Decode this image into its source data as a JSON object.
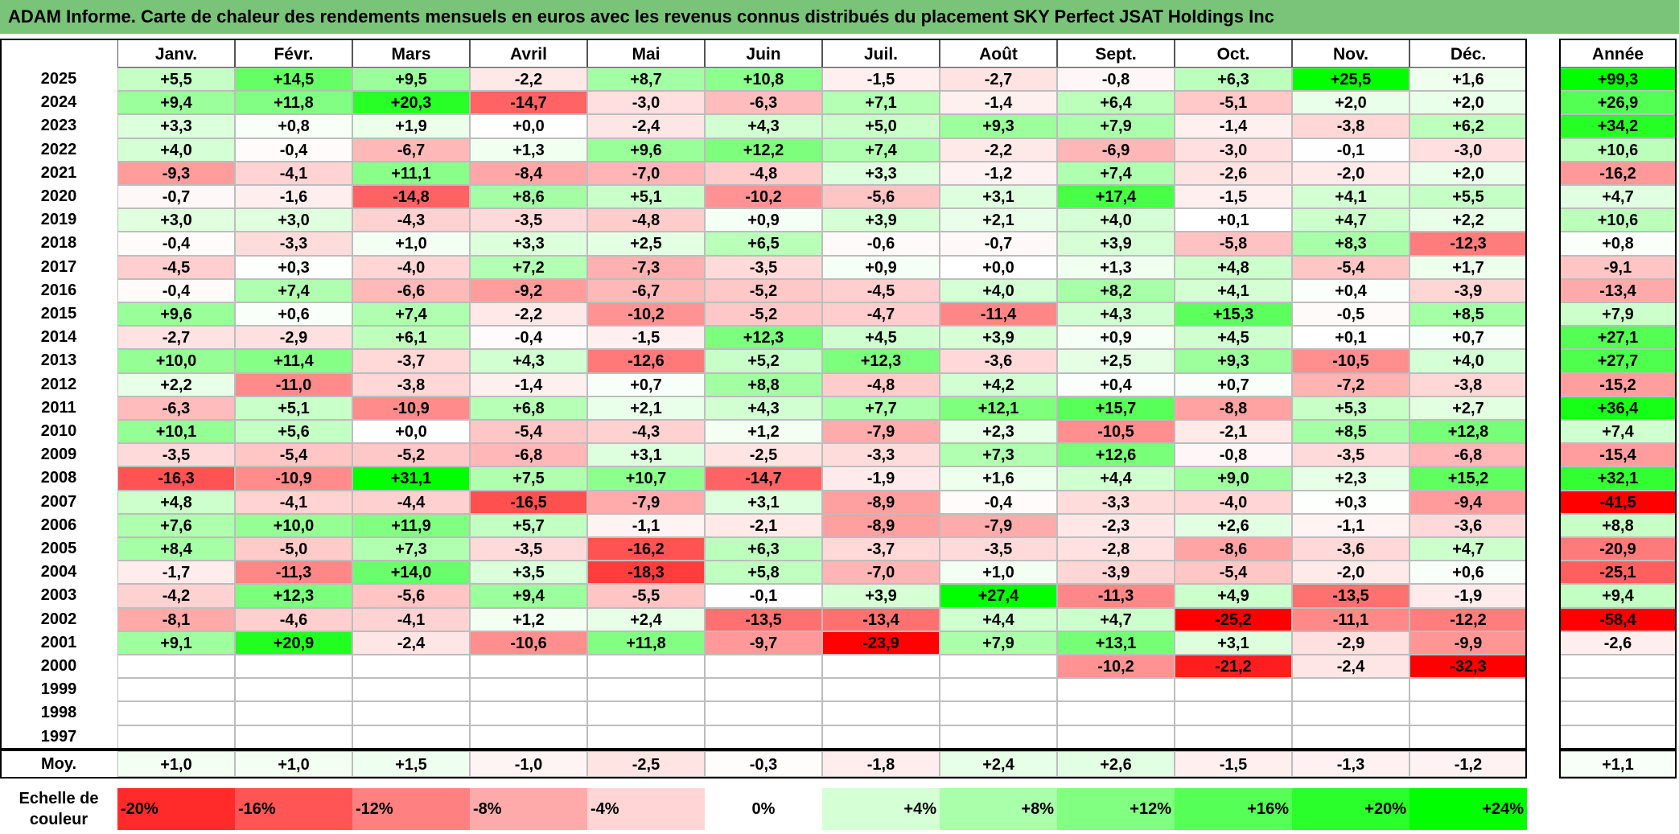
{
  "title": "ADAM Informe. Carte de chaleur des rendements mensuels en euros avec les revenus connus distribués du placement SKY Perfect JSAT Holdings Inc",
  "colors": {
    "title_bar": "#7ac47a",
    "max_red": "#ff0000",
    "max_green": "#00ff00",
    "neutral": "#ffffff"
  },
  "chart_data": {
    "type": "heatmap",
    "title": "ADAM Informe. Carte de chaleur des rendements mensuels en euros avec les revenus connus distribués du placement SKY Perfect JSAT Holdings Inc",
    "months": [
      "Janv.",
      "Févr.",
      "Mars",
      "Avril",
      "Mai",
      "Juin",
      "Juil.",
      "Août",
      "Sept.",
      "Oct.",
      "Nov.",
      "Déc."
    ],
    "annual_label": "Année",
    "rows": [
      {
        "year": "2025",
        "values": [
          "+5,5",
          "+14,5",
          "+9,5",
          "-2,2",
          "+8,7",
          "+10,8",
          "-1,5",
          "-2,7",
          "-0,8",
          "+6,3",
          "+25,5",
          "+1,6"
        ],
        "annual": "+99,3"
      },
      {
        "year": "2024",
        "values": [
          "+9,4",
          "+11,8",
          "+20,3",
          "-14,7",
          "-3,0",
          "-6,3",
          "+7,1",
          "-1,4",
          "+6,4",
          "-5,1",
          "+2,0",
          "+2,0"
        ],
        "annual": "+26,9"
      },
      {
        "year": "2023",
        "values": [
          "+3,3",
          "+0,8",
          "+1,9",
          "+0,0",
          "-2,4",
          "+4,3",
          "+5,0",
          "+9,3",
          "+7,9",
          "-1,4",
          "-3,8",
          "+6,2"
        ],
        "annual": "+34,2"
      },
      {
        "year": "2022",
        "values": [
          "+4,0",
          "-0,4",
          "-6,7",
          "+1,3",
          "+9,6",
          "+12,2",
          "+7,4",
          "-2,2",
          "-6,9",
          "-3,0",
          "-0,1",
          "-3,0"
        ],
        "annual": "+10,6"
      },
      {
        "year": "2021",
        "values": [
          "-9,3",
          "-4,1",
          "+11,1",
          "-8,4",
          "-7,0",
          "-4,8",
          "+3,3",
          "-1,2",
          "+7,4",
          "-2,6",
          "-2,0",
          "+2,0"
        ],
        "annual": "-16,2"
      },
      {
        "year": "2020",
        "values": [
          "-0,7",
          "-1,6",
          "-14,8",
          "+8,6",
          "+5,1",
          "-10,2",
          "-5,6",
          "+3,1",
          "+17,4",
          "-1,5",
          "+4,1",
          "+5,5"
        ],
        "annual": "+4,7"
      },
      {
        "year": "2019",
        "values": [
          "+3,0",
          "+3,0",
          "-4,3",
          "-3,5",
          "-4,8",
          "+0,9",
          "+3,9",
          "+2,1",
          "+4,0",
          "+0,1",
          "+4,7",
          "+2,2"
        ],
        "annual": "+10,6"
      },
      {
        "year": "2018",
        "values": [
          "-0,4",
          "-3,3",
          "+1,0",
          "+3,3",
          "+2,5",
          "+6,5",
          "-0,6",
          "-0,7",
          "+3,9",
          "-5,8",
          "+8,3",
          "-12,3"
        ],
        "annual": "+0,8"
      },
      {
        "year": "2017",
        "values": [
          "-4,5",
          "+0,3",
          "-4,0",
          "+7,2",
          "-7,3",
          "-3,5",
          "+0,9",
          "+0,0",
          "+1,3",
          "+4,8",
          "-5,4",
          "+1,7"
        ],
        "annual": "-9,1"
      },
      {
        "year": "2016",
        "values": [
          "-0,4",
          "+7,4",
          "-6,6",
          "-9,2",
          "-6,7",
          "-5,2",
          "-4,5",
          "+4,0",
          "+8,2",
          "+4,1",
          "+0,4",
          "-3,9"
        ],
        "annual": "-13,4"
      },
      {
        "year": "2015",
        "values": [
          "+9,6",
          "+0,6",
          "+7,4",
          "-2,2",
          "-10,2",
          "-5,2",
          "-4,7",
          "-11,4",
          "+4,3",
          "+15,3",
          "-0,5",
          "+8,5"
        ],
        "annual": "+7,9"
      },
      {
        "year": "2014",
        "values": [
          "-2,7",
          "-2,9",
          "+6,1",
          "-0,4",
          "-1,5",
          "+12,3",
          "+4,5",
          "+3,9",
          "+0,9",
          "+4,5",
          "+0,1",
          "+0,7"
        ],
        "annual": "+27,1"
      },
      {
        "year": "2013",
        "values": [
          "+10,0",
          "+11,4",
          "-3,7",
          "+4,3",
          "-12,6",
          "+5,2",
          "+12,3",
          "-3,6",
          "+2,5",
          "+9,3",
          "-10,5",
          "+4,0"
        ],
        "annual": "+27,7"
      },
      {
        "year": "2012",
        "values": [
          "+2,2",
          "-11,0",
          "-3,8",
          "-1,4",
          "+0,7",
          "+8,8",
          "-4,8",
          "+4,2",
          "+0,4",
          "+0,7",
          "-7,2",
          "-3,8"
        ],
        "annual": "-15,2"
      },
      {
        "year": "2011",
        "values": [
          "-6,3",
          "+5,1",
          "-10,9",
          "+6,8",
          "+2,1",
          "+4,3",
          "+7,7",
          "+12,1",
          "+15,7",
          "-8,8",
          "+5,3",
          "+2,7"
        ],
        "annual": "+36,4"
      },
      {
        "year": "2010",
        "values": [
          "+10,1",
          "+5,6",
          "+0,0",
          "-5,4",
          "-4,3",
          "+1,2",
          "-7,9",
          "+2,3",
          "-10,5",
          "-2,1",
          "+8,5",
          "+12,8"
        ],
        "annual": "+7,4"
      },
      {
        "year": "2009",
        "values": [
          "-3,5",
          "-5,4",
          "-5,2",
          "-6,8",
          "+3,1",
          "-2,5",
          "-3,3",
          "+7,3",
          "+12,6",
          "-0,8",
          "-3,5",
          "-6,8"
        ],
        "annual": "-15,4"
      },
      {
        "year": "2008",
        "values": [
          "-16,3",
          "-10,9",
          "+31,1",
          "+7,5",
          "+10,7",
          "-14,7",
          "-1,9",
          "+1,6",
          "+4,4",
          "+9,0",
          "+2,3",
          "+15,2"
        ],
        "annual": "+32,1"
      },
      {
        "year": "2007",
        "values": [
          "+4,8",
          "-4,1",
          "-4,4",
          "-16,5",
          "-7,9",
          "+3,1",
          "-8,9",
          "-0,4",
          "-3,3",
          "-4,0",
          "+0,3",
          "-9,4"
        ],
        "annual": "-41,5"
      },
      {
        "year": "2006",
        "values": [
          "+7,6",
          "+10,0",
          "+11,9",
          "+5,7",
          "-1,1",
          "-2,1",
          "-8,9",
          "-7,9",
          "-2,3",
          "+2,6",
          "-1,1",
          "-3,6"
        ],
        "annual": "+8,8"
      },
      {
        "year": "2005",
        "values": [
          "+8,4",
          "-5,0",
          "+7,3",
          "-3,5",
          "-16,2",
          "+6,3",
          "-3,7",
          "-3,5",
          "-2,8",
          "-8,6",
          "-3,6",
          "+4,7"
        ],
        "annual": "-20,9"
      },
      {
        "year": "2004",
        "values": [
          "-1,7",
          "-11,3",
          "+14,0",
          "+3,5",
          "-18,3",
          "+5,8",
          "-7,0",
          "+1,0",
          "-3,9",
          "-5,4",
          "-2,0",
          "+0,6"
        ],
        "annual": "-25,1"
      },
      {
        "year": "2003",
        "values": [
          "-4,2",
          "+12,3",
          "-5,6",
          "+9,4",
          "-5,5",
          "-0,1",
          "+3,9",
          "+27,4",
          "-11,3",
          "+4,9",
          "-13,5",
          "-1,9"
        ],
        "annual": "+9,4"
      },
      {
        "year": "2002",
        "values": [
          "-8,1",
          "-4,6",
          "-4,1",
          "+1,2",
          "+2,4",
          "-13,5",
          "-13,4",
          "+4,4",
          "+4,7",
          "-25,2",
          "-11,1",
          "-12,2"
        ],
        "annual": "-58,4"
      },
      {
        "year": "2001",
        "values": [
          "+9,1",
          "+20,9",
          "-2,4",
          "-10,6",
          "+11,8",
          "-9,7",
          "-23,9",
          "+7,9",
          "+13,1",
          "+3,1",
          "-2,9",
          "-9,9"
        ],
        "annual": "-2,6"
      },
      {
        "year": "2000",
        "values": [
          "",
          "",
          "",
          "",
          "",
          "",
          "",
          "",
          "-10,2",
          "-21,2",
          "-2,4",
          "-32,3"
        ],
        "annual": ""
      },
      {
        "year": "1999",
        "values": [
          "",
          "",
          "",
          "",
          "",
          "",
          "",
          "",
          "",
          "",
          "",
          ""
        ],
        "annual": ""
      },
      {
        "year": "1998",
        "values": [
          "",
          "",
          "",
          "",
          "",
          "",
          "",
          "",
          "",
          "",
          "",
          ""
        ],
        "annual": ""
      },
      {
        "year": "1997",
        "values": [
          "",
          "",
          "",
          "",
          "",
          "",
          "",
          "",
          "",
          "",
          "",
          ""
        ],
        "annual": ""
      }
    ],
    "average": {
      "label": "Moy.",
      "values": [
        "+1,0",
        "+1,0",
        "+1,5",
        "-1,0",
        "-2,5",
        "-0,3",
        "-1,8",
        "+2,4",
        "+2,6",
        "-1,5",
        "-1,3",
        "-1,2"
      ],
      "annual": "+1,1"
    },
    "color_scale": {
      "label_line1": "Echelle de",
      "label_line2": "couleur",
      "steps": [
        {
          "label": "-20%",
          "value": -20
        },
        {
          "label": "-16%",
          "value": -16
        },
        {
          "label": "-12%",
          "value": -12
        },
        {
          "label": "-8%",
          "value": -8
        },
        {
          "label": "-4%",
          "value": -4
        },
        {
          "label": "0%",
          "value": 0
        },
        {
          "label": "+4%",
          "value": 4
        },
        {
          "label": "+8%",
          "value": 8
        },
        {
          "label": "+12%",
          "value": 12
        },
        {
          "label": "+16%",
          "value": 16
        },
        {
          "label": "+20%",
          "value": 20
        },
        {
          "label": "+24%",
          "value": 24
        }
      ]
    }
  }
}
